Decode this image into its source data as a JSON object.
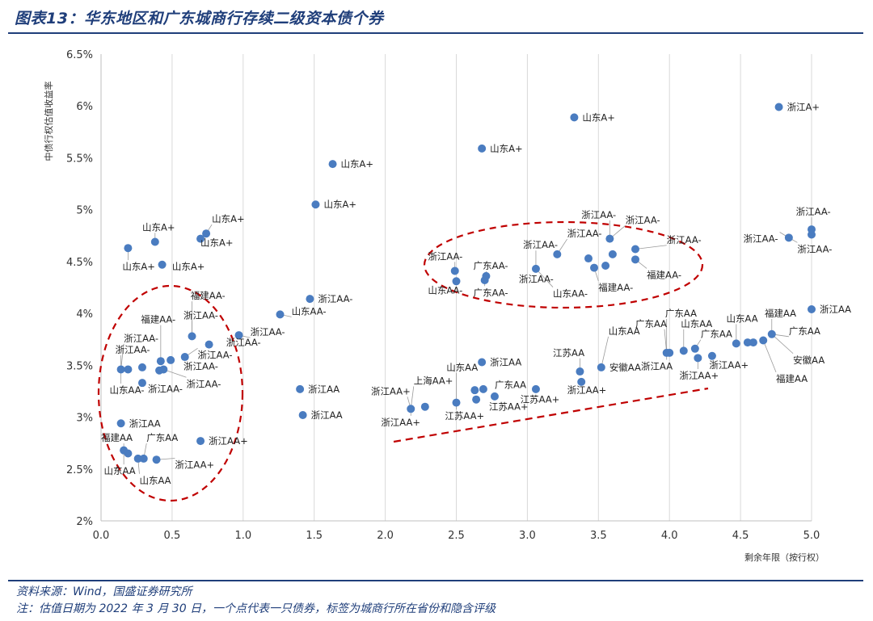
{
  "figure": {
    "title": "图表13：华东地区和广东城商行存续二级资本债个券",
    "source": "资料来源：Wind，国盛证券研究所",
    "note": "注：估值日期为 2022 年 3 月 30 日，一个点代表一只债券，标签为城商行所在省份和隐含评级"
  },
  "chart_data": {
    "type": "scatter",
    "xlabel": "剩余年限（按行权）",
    "ylabel": "中债行权估值收益率",
    "xlim": [
      0,
      5
    ],
    "ylim": [
      2,
      6.5
    ],
    "x_ticks": [
      "0.0",
      "0.5",
      "1.0",
      "1.5",
      "2.0",
      "2.5",
      "3.0",
      "3.5",
      "4.0",
      "4.5",
      "5.0"
    ],
    "y_ticks": [
      "2%",
      "2.5%",
      "3%",
      "3.5%",
      "4%",
      "4.5%",
      "5%",
      "5.5%",
      "6%",
      "6.5%"
    ],
    "grid": "vertical",
    "point_color": "#4a7cc0",
    "annotation_color": "#c00000",
    "points": [
      {
        "x": 0.19,
        "y": 4.63,
        "label": ""
      },
      {
        "x": 0.38,
        "y": 4.69,
        "label": ""
      },
      {
        "x": 0.43,
        "y": 4.47,
        "label": ""
      },
      {
        "x": 0.7,
        "y": 4.72,
        "label": ""
      },
      {
        "x": 0.74,
        "y": 4.77,
        "label": ""
      },
      {
        "x": 1.51,
        "y": 5.05,
        "label": "山东A+"
      },
      {
        "x": 1.63,
        "y": 5.44,
        "label": "山东A+"
      },
      {
        "x": 2.68,
        "y": 5.59,
        "label": "山东A+"
      },
      {
        "x": 3.33,
        "y": 5.89,
        "label": "山东A+"
      },
      {
        "x": 4.77,
        "y": 5.99,
        "label": "浙江A+"
      },
      {
        "x": 0.14,
        "y": 3.46,
        "label": ""
      },
      {
        "x": 0.19,
        "y": 3.46,
        "label": ""
      },
      {
        "x": 0.29,
        "y": 3.48,
        "label": ""
      },
      {
        "x": 0.29,
        "y": 3.33,
        "label": ""
      },
      {
        "x": 0.41,
        "y": 3.45,
        "label": ""
      },
      {
        "x": 0.42,
        "y": 3.54,
        "label": ""
      },
      {
        "x": 0.44,
        "y": 3.46,
        "label": ""
      },
      {
        "x": 0.49,
        "y": 3.55,
        "label": ""
      },
      {
        "x": 0.59,
        "y": 3.58,
        "label": ""
      },
      {
        "x": 0.64,
        "y": 3.78,
        "label": ""
      },
      {
        "x": 0.76,
        "y": 3.7,
        "label": ""
      },
      {
        "x": 0.97,
        "y": 3.79,
        "label": ""
      },
      {
        "x": 1.26,
        "y": 3.99,
        "label": ""
      },
      {
        "x": 1.47,
        "y": 4.14,
        "label": "浙江AA-"
      },
      {
        "x": 0.14,
        "y": 2.94,
        "label": "浙江AA"
      },
      {
        "x": 0.16,
        "y": 2.68,
        "label": ""
      },
      {
        "x": 0.19,
        "y": 2.65,
        "label": ""
      },
      {
        "x": 0.26,
        "y": 2.6,
        "label": ""
      },
      {
        "x": 0.3,
        "y": 2.6,
        "label": ""
      },
      {
        "x": 0.39,
        "y": 2.59,
        "label": ""
      },
      {
        "x": 0.7,
        "y": 2.77,
        "label": "浙江AA+"
      },
      {
        "x": 1.4,
        "y": 3.27,
        "label": "浙江AA"
      },
      {
        "x": 1.42,
        "y": 3.02,
        "label": "浙江AA"
      },
      {
        "x": 2.18,
        "y": 3.08,
        "label": ""
      },
      {
        "x": 2.28,
        "y": 3.1,
        "label": ""
      },
      {
        "x": 2.5,
        "y": 3.14,
        "label": ""
      },
      {
        "x": 2.63,
        "y": 3.26,
        "label": ""
      },
      {
        "x": 2.64,
        "y": 3.17,
        "label": ""
      },
      {
        "x": 2.68,
        "y": 3.53,
        "label": "浙江AA"
      },
      {
        "x": 2.69,
        "y": 3.27,
        "label": ""
      },
      {
        "x": 2.77,
        "y": 3.2,
        "label": ""
      },
      {
        "x": 3.06,
        "y": 3.27,
        "label": ""
      },
      {
        "x": 3.37,
        "y": 3.44,
        "label": ""
      },
      {
        "x": 3.38,
        "y": 3.34,
        "label": ""
      },
      {
        "x": 3.52,
        "y": 3.48,
        "label": "安徽AA"
      },
      {
        "x": 2.49,
        "y": 4.41,
        "label": ""
      },
      {
        "x": 2.5,
        "y": 4.31,
        "label": ""
      },
      {
        "x": 2.7,
        "y": 4.32,
        "label": ""
      },
      {
        "x": 2.71,
        "y": 4.36,
        "label": ""
      },
      {
        "x": 3.06,
        "y": 4.43,
        "label": ""
      },
      {
        "x": 3.21,
        "y": 4.57,
        "label": ""
      },
      {
        "x": 3.43,
        "y": 4.53,
        "label": ""
      },
      {
        "x": 3.47,
        "y": 4.44,
        "label": ""
      },
      {
        "x": 3.55,
        "y": 4.46,
        "label": ""
      },
      {
        "x": 3.58,
        "y": 4.72,
        "label": ""
      },
      {
        "x": 3.6,
        "y": 4.57,
        "label": ""
      },
      {
        "x": 3.76,
        "y": 4.62,
        "label": ""
      },
      {
        "x": 3.76,
        "y": 4.52,
        "label": ""
      },
      {
        "x": 3.98,
        "y": 3.62,
        "label": ""
      },
      {
        "x": 4.0,
        "y": 3.62,
        "label": ""
      },
      {
        "x": 4.1,
        "y": 3.64,
        "label": ""
      },
      {
        "x": 4.18,
        "y": 3.66,
        "label": ""
      },
      {
        "x": 4.2,
        "y": 3.57,
        "label": ""
      },
      {
        "x": 4.3,
        "y": 3.59,
        "label": ""
      },
      {
        "x": 4.47,
        "y": 3.71,
        "label": ""
      },
      {
        "x": 4.55,
        "y": 3.72,
        "label": ""
      },
      {
        "x": 4.59,
        "y": 3.72,
        "label": ""
      },
      {
        "x": 4.66,
        "y": 3.74,
        "label": ""
      },
      {
        "x": 4.72,
        "y": 3.8,
        "label": ""
      },
      {
        "x": 4.84,
        "y": 4.73,
        "label": ""
      },
      {
        "x": 5.0,
        "y": 4.81,
        "label": ""
      },
      {
        "x": 5.0,
        "y": 4.76,
        "label": ""
      },
      {
        "x": 5.0,
        "y": 4.04,
        "label": "浙江AA"
      }
    ],
    "annotations": [
      {
        "text": "山东A+",
        "x": 0.15,
        "y": 4.42
      },
      {
        "text": "山东A+",
        "x": 0.29,
        "y": 4.8
      },
      {
        "text": "山东A+",
        "x": 0.5,
        "y": 4.42
      },
      {
        "text": "山东A+",
        "x": 0.78,
        "y": 4.88
      },
      {
        "text": "山东A+",
        "x": 0.7,
        "y": 4.65
      },
      {
        "text": "浙江AA-",
        "x": 0.1,
        "y": 3.62
      },
      {
        "text": "浙江AA-",
        "x": 0.16,
        "y": 3.73
      },
      {
        "text": "福建AA-",
        "x": 0.28,
        "y": 3.91
      },
      {
        "text": "福建AA-",
        "x": 0.63,
        "y": 4.14
      },
      {
        "text": "浙江AA-",
        "x": 0.58,
        "y": 3.95
      },
      {
        "text": "浙江AA-",
        "x": 1.05,
        "y": 3.79
      },
      {
        "text": "浙江AA-",
        "x": 0.88,
        "y": 3.69
      },
      {
        "text": "浙江AA-",
        "x": 0.68,
        "y": 3.57
      },
      {
        "text": "浙江AA-",
        "x": 0.58,
        "y": 3.46
      },
      {
        "text": "浙江AA-",
        "x": 0.6,
        "y": 3.29
      },
      {
        "text": "浙江AA-",
        "x": 0.33,
        "y": 3.24
      },
      {
        "text": "山东AA-",
        "x": 0.06,
        "y": 3.23
      },
      {
        "text": "山东AA-",
        "x": 1.34,
        "y": 3.99
      },
      {
        "text": "福建AA",
        "x": 0.0,
        "y": 2.77
      },
      {
        "text": "广东AA",
        "x": 0.32,
        "y": 2.77
      },
      {
        "text": "山东AA",
        "x": 0.02,
        "y": 2.45
      },
      {
        "text": "山东AA",
        "x": 0.27,
        "y": 2.36
      },
      {
        "text": "浙江AA+",
        "x": 0.52,
        "y": 2.51
      },
      {
        "text": "浙江AA-",
        "x": 2.3,
        "y": 4.52
      },
      {
        "text": "广东AA-",
        "x": 2.62,
        "y": 4.43
      },
      {
        "text": "山东AA-",
        "x": 2.3,
        "y": 4.19
      },
      {
        "text": "广东AA-",
        "x": 2.62,
        "y": 4.17
      },
      {
        "text": "浙江AA-",
        "x": 2.97,
        "y": 4.63
      },
      {
        "text": "浙江AA-",
        "x": 2.94,
        "y": 4.3
      },
      {
        "text": "浙江AA-",
        "x": 3.28,
        "y": 4.74
      },
      {
        "text": "浙江AA-",
        "x": 3.38,
        "y": 4.92
      },
      {
        "text": "浙江AA-",
        "x": 3.69,
        "y": 4.87
      },
      {
        "text": "浙江AA-",
        "x": 3.98,
        "y": 4.68
      },
      {
        "text": "山东AA-",
        "x": 3.18,
        "y": 4.16
      },
      {
        "text": "福建AA-",
        "x": 3.5,
        "y": 4.22
      },
      {
        "text": "福建AA-",
        "x": 3.84,
        "y": 4.34
      },
      {
        "text": "山东AA",
        "x": 2.43,
        "y": 3.45
      },
      {
        "text": "上海AA+",
        "x": 2.2,
        "y": 3.32
      },
      {
        "text": "浙江AA+",
        "x": 1.9,
        "y": 3.22
      },
      {
        "text": "浙江AA+",
        "x": 1.97,
        "y": 2.92
      },
      {
        "text": "广东AA",
        "x": 2.77,
        "y": 3.28
      },
      {
        "text": "江苏AA+",
        "x": 2.42,
        "y": 2.98
      },
      {
        "text": "江苏AA+",
        "x": 2.73,
        "y": 3.07
      },
      {
        "text": "江苏AA+",
        "x": 2.95,
        "y": 3.14
      },
      {
        "text": "江苏AA",
        "x": 3.18,
        "y": 3.59
      },
      {
        "text": "浙江AA+",
        "x": 3.28,
        "y": 3.23
      },
      {
        "text": "浙江AA",
        "x": 3.8,
        "y": 3.46
      },
      {
        "text": "浙江AA+",
        "x": 4.07,
        "y": 3.37
      },
      {
        "text": "浙江AA+",
        "x": 4.28,
        "y": 3.47
      },
      {
        "text": "山东AA",
        "x": 3.57,
        "y": 3.8
      },
      {
        "text": "广东AA",
        "x": 3.76,
        "y": 3.87
      },
      {
        "text": "广东AA",
        "x": 3.97,
        "y": 3.97
      },
      {
        "text": "山东AA",
        "x": 4.08,
        "y": 3.87
      },
      {
        "text": "广东AA",
        "x": 4.22,
        "y": 3.77
      },
      {
        "text": "山东AA",
        "x": 4.4,
        "y": 3.92
      },
      {
        "text": "福建AA",
        "x": 4.67,
        "y": 3.97
      },
      {
        "text": "广东AA",
        "x": 4.84,
        "y": 3.8
      },
      {
        "text": "安徽AA",
        "x": 4.87,
        "y": 3.52
      },
      {
        "text": "福建AA",
        "x": 4.75,
        "y": 3.34
      },
      {
        "text": "浙江AA-",
        "x": 4.52,
        "y": 4.69
      },
      {
        "text": "浙江AA-",
        "x": 4.89,
        "y": 4.95
      },
      {
        "text": "浙江AA-",
        "x": 4.9,
        "y": 4.59
      }
    ]
  }
}
